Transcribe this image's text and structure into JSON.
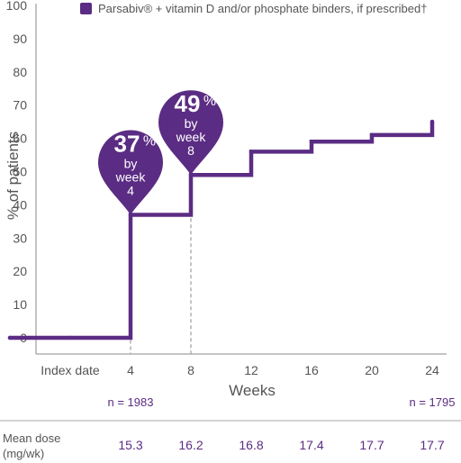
{
  "chart_data": {
    "type": "line",
    "step": true,
    "ylabel": "% of patients",
    "xlabel": "Weeks",
    "ylim": [
      0,
      100
    ],
    "yticks": [
      0,
      10,
      20,
      30,
      40,
      50,
      60,
      70,
      80,
      90,
      100
    ],
    "xticks": [
      {
        "x": 0,
        "label": "Index date"
      },
      {
        "x": 4,
        "label": "4"
      },
      {
        "x": 8,
        "label": "8"
      },
      {
        "x": 12,
        "label": "12"
      },
      {
        "x": 16,
        "label": "16"
      },
      {
        "x": 20,
        "label": "20"
      },
      {
        "x": 24,
        "label": "24"
      }
    ],
    "legend": {
      "label": "Parsabiv® + vitamin D and/or phosphate binders, if prescribed†",
      "color": "#5b2c83",
      "placement": "top"
    },
    "series": [
      {
        "name": "Parsabiv® + vitamin D and/or phosphate binders, if prescribed†",
        "color": "#5b2c83",
        "points": [
          {
            "x": -4,
            "y": 0
          },
          {
            "x": 0,
            "y": 0
          },
          {
            "x": 4,
            "y": 37
          },
          {
            "x": 8,
            "y": 49
          },
          {
            "x": 12,
            "y": 56
          },
          {
            "x": 16,
            "y": 59
          },
          {
            "x": 20,
            "y": 61
          },
          {
            "x": 24,
            "y": 65
          }
        ]
      }
    ],
    "annotations": [
      {
        "x": 4,
        "y": 37,
        "value": "37",
        "unit": "%",
        "line1": "by",
        "line2": "week",
        "line3": "4"
      },
      {
        "x": 8,
        "y": 49,
        "value": "49",
        "unit": "%",
        "line1": "by",
        "line2": "week",
        "line3": "8"
      }
    ],
    "n_labels": [
      {
        "x": 4,
        "label": "n = 1983"
      },
      {
        "x": 24,
        "label": "n = 1795"
      }
    ],
    "mean_dose": {
      "label_line1": "Mean dose",
      "label_line2": "(mg/wk)",
      "values": [
        {
          "x": 4,
          "value": "15.3"
        },
        {
          "x": 8,
          "value": "16.2"
        },
        {
          "x": 12,
          "value": "16.8"
        },
        {
          "x": 16,
          "value": "17.4"
        },
        {
          "x": 20,
          "value": "17.7"
        },
        {
          "x": 24,
          "value": "17.7"
        }
      ]
    }
  }
}
